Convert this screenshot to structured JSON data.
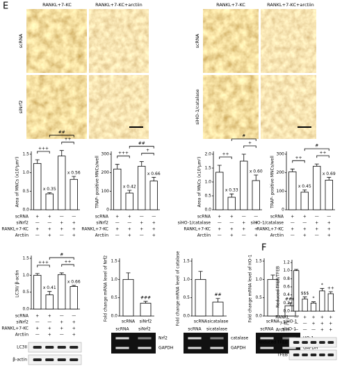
{
  "figure": {
    "panel_labels": [
      "E",
      "F"
    ],
    "micrographs": [
      {
        "columns": [
          "RANKL+7-KC",
          "RANKL+7-KC+arctiin"
        ],
        "rows": [
          "scRNA",
          "siNrf2"
        ]
      },
      {
        "columns": [
          "RANKL+7-KC",
          "RANKL+7-KC+arctiin"
        ],
        "rows": [
          "scRNA",
          "siHO-1/catalase"
        ]
      }
    ]
  },
  "chart_data": [
    {
      "type": "bar",
      "ylabel": "Area of MNCs (x10³μm²)",
      "ylim": [
        0,
        1.5
      ],
      "yticks": [
        {
          "value": 0,
          "label": "0.0"
        },
        0.5,
        {
          "value": 1,
          "label": "1.0"
        },
        1.5
      ],
      "values": [
        1.25,
        0.43,
        1.45,
        0.82
      ],
      "errors": [
        0.1,
        0.03,
        0.15,
        0.08
      ],
      "color": "#ffffff",
      "annotations": [
        null,
        "x 0.35",
        null,
        "x 0.56"
      ],
      "significance": [
        "+++",
        "++",
        "##"
      ],
      "conditions": [
        {
          "label": "scRNA",
          "marks": [
            "+",
            "+",
            "—",
            "—"
          ]
        },
        {
          "label": "siNrf2",
          "marks": [
            "—",
            "—",
            "+",
            "+"
          ]
        },
        {
          "label": "RANKL+7-KC",
          "marks": [
            "+",
            "+",
            "+",
            "+"
          ]
        },
        {
          "label": "Arctiin",
          "marks": [
            "—",
            "+",
            "—",
            "+"
          ]
        }
      ]
    },
    {
      "type": "bar",
      "ylabel": "TRAP- positive MNCs/well",
      "ylim": [
        0,
        300
      ],
      "yticks": [
        0,
        100,
        200,
        300
      ],
      "values": [
        220,
        90,
        235,
        155
      ],
      "errors": [
        25,
        15,
        25,
        20
      ],
      "color": "#ffffff",
      "annotations": [
        null,
        "x 0.42",
        null,
        "x 0.66"
      ],
      "significance": [
        "+++",
        "+",
        "##"
      ],
      "conditions": [
        {
          "label": "scRNA",
          "marks": [
            "+",
            "+",
            "—",
            "—"
          ]
        },
        {
          "label": "siNrf2",
          "marks": [
            "—",
            "—",
            "+",
            "+"
          ]
        },
        {
          "label": "RANKL+7-KC",
          "marks": [
            "+",
            "+",
            "+",
            "+"
          ]
        },
        {
          "label": "Arctiin",
          "marks": [
            "—",
            "+",
            "—",
            "+"
          ]
        }
      ]
    },
    {
      "type": "bar",
      "ylabel": "Area of MNCs (x10³μm²)",
      "ylim": [
        0,
        2
      ],
      "yticks": [
        {
          "value": 0,
          "label": "0.0"
        },
        0.5,
        {
          "value": 1,
          "label": "1.0"
        },
        1.5,
        {
          "value": 2,
          "label": "2.0"
        }
      ],
      "values": [
        1.35,
        0.45,
        1.75,
        1.05
      ],
      "errors": [
        0.25,
        0.12,
        0.25,
        0.2
      ],
      "color": "#ffffff",
      "annotations": [
        null,
        "x 0.33",
        null,
        "x 0.60"
      ],
      "significance": [
        "++",
        "+",
        "#"
      ],
      "conditions": [
        {
          "label": "scRNA",
          "marks": [
            "+",
            "+",
            "—",
            "—"
          ]
        },
        {
          "label": "siHO-1/catalase",
          "marks": [
            "—",
            "—",
            "+",
            "+"
          ]
        },
        {
          "label": "RANKL+7-KC",
          "marks": [
            "+",
            "+",
            "+",
            "+"
          ]
        },
        {
          "label": "Arctiin",
          "marks": [
            "—",
            "+",
            "—",
            "+"
          ]
        }
      ]
    },
    {
      "type": "bar",
      "ylabel": "TRAP- positive MNCs/well",
      "ylim": [
        0,
        300
      ],
      "yticks": [
        0,
        100,
        200,
        300
      ],
      "values": [
        205,
        95,
        235,
        160
      ],
      "errors": [
        15,
        12,
        12,
        15
      ],
      "color": "#ffffff",
      "annotations": [
        null,
        "x 0.45",
        null,
        "x 0.69"
      ],
      "significance": [
        "++",
        "++",
        "#"
      ],
      "conditions": [
        {
          "label": "scRNA",
          "marks": [
            "+",
            "+",
            "—",
            "—"
          ]
        },
        {
          "label": "siHO-1/catalase",
          "marks": [
            "—",
            "—",
            "+",
            "+"
          ]
        },
        {
          "label": "RANKL+7-KC",
          "marks": [
            "+",
            "+",
            "+",
            "+"
          ]
        },
        {
          "label": "Arctiin",
          "marks": [
            "—",
            "+",
            "—",
            "+"
          ]
        }
      ]
    },
    {
      "type": "bar",
      "ylabel": "LC3II/ β-actin",
      "ylim": [
        0,
        1.5
      ],
      "yticks": [
        {
          "value": 0,
          "label": "0.0"
        },
        0.5,
        {
          "value": 1,
          "label": "1.0"
        },
        1.5
      ],
      "values": [
        1.0,
        0.42,
        1.02,
        0.67
      ],
      "errors": [
        0.05,
        0.1,
        0.05,
        0.03
      ],
      "color": "#ffffff",
      "annotations": [
        null,
        "x 0.41",
        null,
        "x 0.66"
      ],
      "significance": [
        "+++",
        "++",
        "#"
      ],
      "conditions": [
        {
          "label": "scRNA",
          "marks": [
            "+",
            "+",
            "—",
            "—"
          ]
        },
        {
          "label": "siNrf2",
          "marks": [
            "—",
            "—",
            "+",
            "+"
          ]
        },
        {
          "label": "RANKL+7-KC",
          "marks": [
            "+",
            "+",
            "+",
            "+"
          ]
        },
        {
          "label": "Arctiin",
          "marks": [
            "—",
            "+",
            "—",
            "+"
          ]
        }
      ],
      "gel": {
        "bands": [
          "LC3II",
          "β-actin"
        ]
      }
    },
    {
      "type": "bar",
      "ylabel": "Fold change mRNA level of Nrf2",
      "ylim": [
        0,
        1.5
      ],
      "yticks": [
        {
          "value": 0,
          "label": "0.0"
        },
        0.5,
        {
          "value": 1,
          "label": "1.0"
        },
        1.5
      ],
      "categories": [
        "scRNA",
        "siNrf2"
      ],
      "values": [
        1.0,
        0.35
      ],
      "errors": [
        0.18,
        0.05
      ],
      "color": "#ffffff",
      "annotations": [
        null,
        "###"
      ],
      "gel": {
        "lanes": [
          "scRNA",
          "siNrf2"
        ],
        "bands": [
          "Nrf2",
          "GAPDH"
        ]
      }
    },
    {
      "type": "bar",
      "ylabel": "Fold change mRNA level of catalase",
      "ylim": [
        0,
        1.5
      ],
      "yticks": [
        {
          "value": 0,
          "label": "0.0"
        },
        0.5,
        {
          "value": 1,
          "label": "1.0"
        },
        1.5
      ],
      "categories": [
        "scRNA",
        "sicatalase"
      ],
      "values": [
        1.0,
        0.38
      ],
      "errors": [
        0.22,
        0.1
      ],
      "color": "#ffffff",
      "annotations": [
        null,
        "##"
      ],
      "gel": {
        "lanes": [
          "scRNA",
          "sicatalase"
        ],
        "bands": [
          "catalase",
          "GAPDH"
        ]
      }
    },
    {
      "type": "bar",
      "ylabel": "Fold change mRNA level of HO-1",
      "ylim": [
        0,
        1.5
      ],
      "yticks": [
        {
          "value": 0,
          "label": "0.0"
        },
        0.5,
        {
          "value": 1,
          "label": "1.0"
        },
        1.5
      ],
      "categories": [
        "scRNA",
        "siHO-1"
      ],
      "values": [
        1.0,
        0.28
      ],
      "errors": [
        0.12,
        0.08
      ],
      "color": "#ffffff",
      "annotations": [
        null,
        "###"
      ],
      "gel": {
        "lanes": [
          "scRNA",
          "siHO-1"
        ],
        "bands": [
          "HO-1",
          "GAPDH"
        ]
      }
    },
    {
      "type": "bar",
      "ylabel": "Reduced TFEB/TFEB",
      "ylim": [
        0,
        1.2
      ],
      "yticks": [
        {
          "value": 0,
          "label": "0.0"
        },
        0.2,
        0.4,
        0.6,
        0.8,
        {
          "value": 1,
          "label": "1.0"
        },
        1.2
      ],
      "values": [
        1.0,
        0.3,
        0.2,
        0.5,
        0.43
      ],
      "errors": [
        0.03,
        0.05,
        0.03,
        0.06,
        0.05
      ],
      "color": "#ffffff",
      "annotations": [
        null,
        "$$$",
        "*",
        "*",
        "++"
      ],
      "conditions": [
        {
          "label": "RANKL",
          "marks": [
            "—",
            "+",
            "+",
            "+",
            "+"
          ]
        },
        {
          "label": "7-KC",
          "marks": [
            "—",
            "—",
            "+",
            "+",
            "+"
          ]
        },
        {
          "label": "Arctiin",
          "marks": [
            "—",
            "—",
            "—",
            "+",
            "+"
          ]
        }
      ],
      "gel": {
        "bands": [
          "Reduced TFEB",
          "TFEB"
        ]
      }
    }
  ]
}
